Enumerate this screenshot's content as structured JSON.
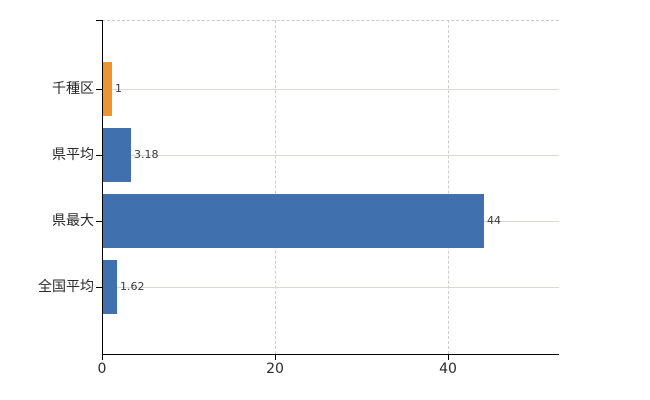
{
  "chart_data": {
    "type": "bar",
    "orientation": "horizontal",
    "title": "",
    "xlabel": "",
    "ylabel": "",
    "categories": [
      "千種区",
      "県平均",
      "県最大",
      "全国平均"
    ],
    "values": [
      1,
      3.18,
      44,
      1.62
    ],
    "value_labels": [
      "1",
      "3.18",
      "44",
      "1.62"
    ],
    "bar_colors": [
      "#ED9331",
      "#4070AD",
      "#4070AD",
      "#4070AD"
    ],
    "highlight_index": 0,
    "xlim": [
      0,
      52.8
    ],
    "x_ticks": [
      0,
      20,
      40
    ],
    "x_tick_labels": [
      "0",
      "20",
      "40"
    ],
    "grid": true,
    "legend": false
  },
  "colors": {
    "bar_blue": "#4070AD",
    "bar_orange": "#ED9331",
    "grid_solid": "#d5dad2",
    "grid_dashed": "#cdcdcd",
    "axis": "#000000",
    "category_text": "#2a2a2a",
    "value_text": "#3a3a3a",
    "background": "#ffffff"
  }
}
